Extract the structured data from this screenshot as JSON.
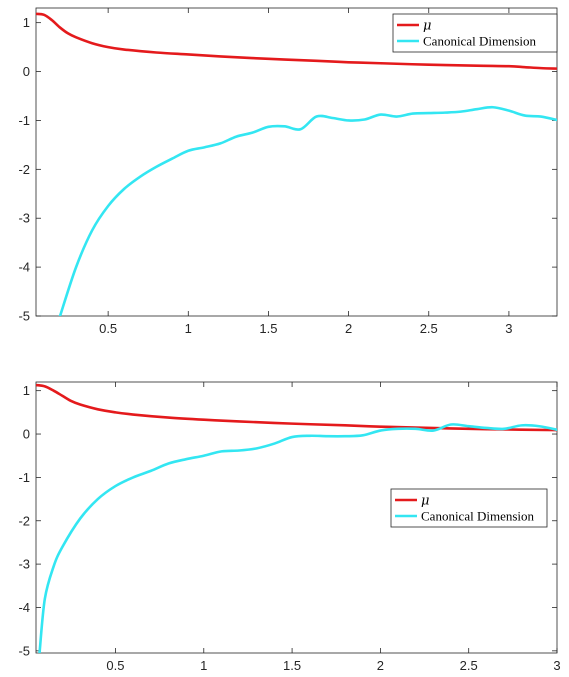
{
  "chart_data": [
    {
      "type": "line",
      "xlim": [
        0.05,
        3.3
      ],
      "ylim": [
        -5,
        1.3
      ],
      "xticks": [
        0.5,
        1,
        1.5,
        2,
        2.5,
        3
      ],
      "xtick_labels": [
        "0.5",
        "1",
        "1.5",
        "2",
        "2.5",
        "3"
      ],
      "yticks": [
        1,
        0,
        -1,
        -2,
        -3,
        -4,
        -5
      ],
      "ytick_labels": [
        "1",
        "0",
        "-1",
        "-2",
        "-3",
        "-4",
        "-5"
      ],
      "grid": false,
      "legend_position": "top-right",
      "series": [
        {
          "name": "μ",
          "color": "#e41a1c",
          "x": [
            0.05,
            0.1,
            0.15,
            0.2,
            0.25,
            0.3,
            0.4,
            0.5,
            0.6,
            0.8,
            1.0,
            1.2,
            1.5,
            1.8,
            2.0,
            2.2,
            2.5,
            2.8,
            3.0,
            3.1,
            3.2,
            3.3
          ],
          "y": [
            1.18,
            1.16,
            1.05,
            0.9,
            0.78,
            0.7,
            0.58,
            0.5,
            0.45,
            0.39,
            0.35,
            0.31,
            0.26,
            0.22,
            0.19,
            0.17,
            0.14,
            0.12,
            0.11,
            0.09,
            0.07,
            0.06
          ]
        },
        {
          "name": "Canonical Dimension",
          "color": "#33e6f2",
          "x": [
            0.2,
            0.3,
            0.4,
            0.5,
            0.6,
            0.7,
            0.8,
            0.9,
            1.0,
            1.1,
            1.2,
            1.3,
            1.4,
            1.5,
            1.6,
            1.7,
            1.8,
            1.9,
            2.0,
            2.1,
            2.2,
            2.3,
            2.4,
            2.5,
            2.6,
            2.7,
            2.8,
            2.9,
            3.0,
            3.1,
            3.2,
            3.3
          ],
          "y": [
            -5.0,
            -4.0,
            -3.25,
            -2.75,
            -2.4,
            -2.15,
            -1.95,
            -1.78,
            -1.62,
            -1.55,
            -1.47,
            -1.33,
            -1.25,
            -1.13,
            -1.12,
            -1.18,
            -0.92,
            -0.95,
            -1.0,
            -0.98,
            -0.88,
            -0.92,
            -0.86,
            -0.85,
            -0.84,
            -0.82,
            -0.77,
            -0.73,
            -0.8,
            -0.9,
            -0.92,
            -0.99
          ]
        }
      ]
    },
    {
      "type": "line",
      "xlim": [
        0.05,
        3.0
      ],
      "ylim": [
        -5.05,
        1.2
      ],
      "xticks": [
        0.5,
        1,
        1.5,
        2,
        2.5,
        3
      ],
      "xtick_labels": [
        "0.5",
        "1",
        "1.5",
        "2",
        "2.5",
        "3"
      ],
      "yticks": [
        1,
        0,
        -1,
        -2,
        -3,
        -4,
        -5
      ],
      "ytick_labels": [
        "1",
        "0",
        "-1",
        "-2",
        "-3",
        "-4",
        "-5"
      ],
      "grid": false,
      "legend_position": "center-right",
      "series": [
        {
          "name": "μ",
          "color": "#e41a1c",
          "x": [
            0.05,
            0.1,
            0.15,
            0.2,
            0.25,
            0.3,
            0.4,
            0.5,
            0.6,
            0.8,
            1.0,
            1.2,
            1.5,
            1.8,
            2.0,
            2.2,
            2.5,
            2.8,
            3.0
          ],
          "y": [
            1.13,
            1.1,
            1.0,
            0.88,
            0.76,
            0.68,
            0.57,
            0.5,
            0.45,
            0.38,
            0.33,
            0.29,
            0.24,
            0.2,
            0.17,
            0.15,
            0.12,
            0.1,
            0.09
          ]
        },
        {
          "name": "Canonical Dimension",
          "color": "#33e6f2",
          "x": [
            0.07,
            0.1,
            0.15,
            0.2,
            0.3,
            0.4,
            0.5,
            0.6,
            0.7,
            0.8,
            0.9,
            1.0,
            1.1,
            1.2,
            1.3,
            1.4,
            1.5,
            1.6,
            1.7,
            1.8,
            1.9,
            2.0,
            2.1,
            2.2,
            2.3,
            2.4,
            2.5,
            2.6,
            2.7,
            2.8,
            2.9,
            3.0
          ],
          "y": [
            -5.05,
            -3.8,
            -3.05,
            -2.6,
            -1.95,
            -1.5,
            -1.2,
            -1.0,
            -0.85,
            -0.68,
            -0.58,
            -0.5,
            -0.4,
            -0.38,
            -0.33,
            -0.22,
            -0.07,
            -0.04,
            -0.05,
            -0.05,
            -0.03,
            0.08,
            0.12,
            0.12,
            0.08,
            0.22,
            0.18,
            0.14,
            0.12,
            0.2,
            0.18,
            0.1
          ]
        }
      ]
    }
  ]
}
